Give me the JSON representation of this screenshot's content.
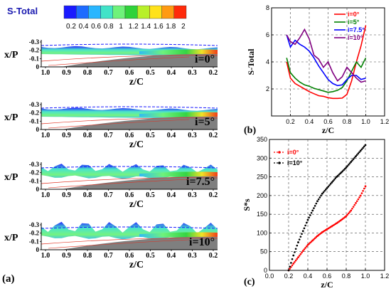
{
  "colorbar": {
    "title": "S-Total",
    "ticks": [
      "0.2",
      "0.4",
      "0.6",
      "0.8",
      "1",
      "1.2",
      "1.4",
      "1.6",
      "1.8",
      "2"
    ],
    "colors": [
      "#1a1aff",
      "#1e6bff",
      "#29b6ff",
      "#41e3c8",
      "#6ef27a",
      "#2fd23a",
      "#b8f02a",
      "#ffe21a",
      "#ff9a12",
      "#ff2a0a"
    ]
  },
  "panel_a": {
    "label": "(a)",
    "xlabel": "z/C",
    "ylabel": "x/P",
    "x_ticks": [
      "1.0",
      "0.9",
      "0.8",
      "0.7",
      "0.6",
      "0.5",
      "0.4",
      "0.3",
      "0.2"
    ],
    "y_ticks": [
      "-0.3",
      "-0.2",
      "-0.1",
      "0"
    ],
    "x_ticks_last": [
      "1.0",
      "0.9",
      "0.8",
      "0.7",
      "0.6",
      "0.5",
      "0.4",
      "0.3",
      "0.2"
    ],
    "subplots": [
      {
        "annotation": "i=0°"
      },
      {
        "annotation": "i=5°"
      },
      {
        "annotation": "i=7.5°"
      },
      {
        "annotation": "i=10°"
      }
    ]
  },
  "chart_data": [
    {
      "type": "line",
      "panel": "(b)",
      "xlabel": "z/C",
      "ylabel": "S-Total",
      "xlim": [
        0,
        1.2
      ],
      "ylim": [
        0,
        8
      ],
      "x_ticks": [
        0.2,
        0.4,
        0.6,
        0.8,
        1.0,
        1.2
      ],
      "y_ticks": [
        2,
        4,
        6,
        8
      ],
      "grid": true,
      "legend_position": "top-right",
      "series": [
        {
          "name": "i=0°",
          "color": "#ff0000",
          "x": [
            0.16,
            0.2,
            0.25,
            0.3,
            0.35,
            0.4,
            0.45,
            0.5,
            0.55,
            0.6,
            0.65,
            0.7,
            0.75,
            0.8,
            0.85,
            0.9,
            0.95,
            1.0
          ],
          "y": [
            4.0,
            2.8,
            2.4,
            2.2,
            2.0,
            1.8,
            1.65,
            1.5,
            1.45,
            1.35,
            1.3,
            1.3,
            1.32,
            1.6,
            2.6,
            4.0,
            5.2,
            6.7
          ]
        },
        {
          "name": "i=5°",
          "color": "#008000",
          "x": [
            0.16,
            0.2,
            0.25,
            0.3,
            0.35,
            0.4,
            0.45,
            0.5,
            0.55,
            0.6,
            0.65,
            0.7,
            0.75,
            0.8,
            0.85,
            0.9,
            0.95,
            1.0
          ],
          "y": [
            4.3,
            3.2,
            2.8,
            2.5,
            2.3,
            2.2,
            2.05,
            1.95,
            1.85,
            1.75,
            1.8,
            1.9,
            2.1,
            2.6,
            3.3,
            4.0,
            3.6,
            4.3
          ]
        },
        {
          "name": "i=7.5°",
          "color": "#0000ff",
          "x": [
            0.16,
            0.2,
            0.25,
            0.3,
            0.35,
            0.4,
            0.45,
            0.5,
            0.55,
            0.6,
            0.65,
            0.7,
            0.75,
            0.8,
            0.85,
            0.9,
            0.95,
            1.0
          ],
          "y": [
            6.0,
            5.1,
            5.6,
            5.3,
            5.1,
            4.8,
            4.3,
            3.7,
            3.2,
            2.7,
            2.4,
            2.25,
            2.3,
            2.7,
            3.0,
            3.0,
            2.7,
            2.8
          ]
        },
        {
          "name": "i=10°",
          "color": "#800080",
          "x": [
            0.16,
            0.2,
            0.25,
            0.3,
            0.35,
            0.4,
            0.45,
            0.5,
            0.55,
            0.6,
            0.65,
            0.7,
            0.75,
            0.8,
            0.85,
            0.9,
            0.95,
            1.0
          ],
          "y": [
            6.0,
            5.5,
            5.3,
            5.8,
            6.4,
            5.7,
            4.5,
            4.2,
            3.6,
            4.0,
            3.2,
            2.6,
            2.9,
            3.6,
            3.2,
            2.8,
            2.5,
            2.6
          ]
        }
      ]
    },
    {
      "type": "scatter",
      "panel": "(c)",
      "xlabel": "z/C",
      "ylabel": "S*s",
      "xlim": [
        0,
        1.2
      ],
      "ylim": [
        0,
        350
      ],
      "x_ticks": [
        0,
        0.2,
        0.4,
        0.6,
        0.8,
        1.0,
        1.2
      ],
      "y_ticks": [
        0,
        50,
        100,
        150,
        200,
        250,
        300,
        350
      ],
      "grid": true,
      "legend_position": "top-left",
      "series": [
        {
          "name": "i=0°",
          "color": "#ff0000",
          "x": [
            0.2,
            0.25,
            0.3,
            0.35,
            0.4,
            0.45,
            0.5,
            0.55,
            0.6,
            0.65,
            0.7,
            0.75,
            0.8,
            0.85,
            0.9,
            0.95,
            1.0
          ],
          "y": [
            0,
            18,
            35,
            52,
            68,
            80,
            92,
            102,
            110,
            118,
            126,
            135,
            145,
            160,
            180,
            200,
            225
          ]
        },
        {
          "name": "i=10°",
          "color": "#000000",
          "x": [
            0.2,
            0.25,
            0.3,
            0.35,
            0.4,
            0.45,
            0.5,
            0.55,
            0.6,
            0.65,
            0.7,
            0.75,
            0.8,
            0.85,
            0.9,
            0.95,
            1.0
          ],
          "y": [
            0,
            40,
            75,
            105,
            135,
            160,
            185,
            205,
            220,
            235,
            250,
            262,
            275,
            290,
            305,
            320,
            335
          ]
        }
      ]
    }
  ]
}
